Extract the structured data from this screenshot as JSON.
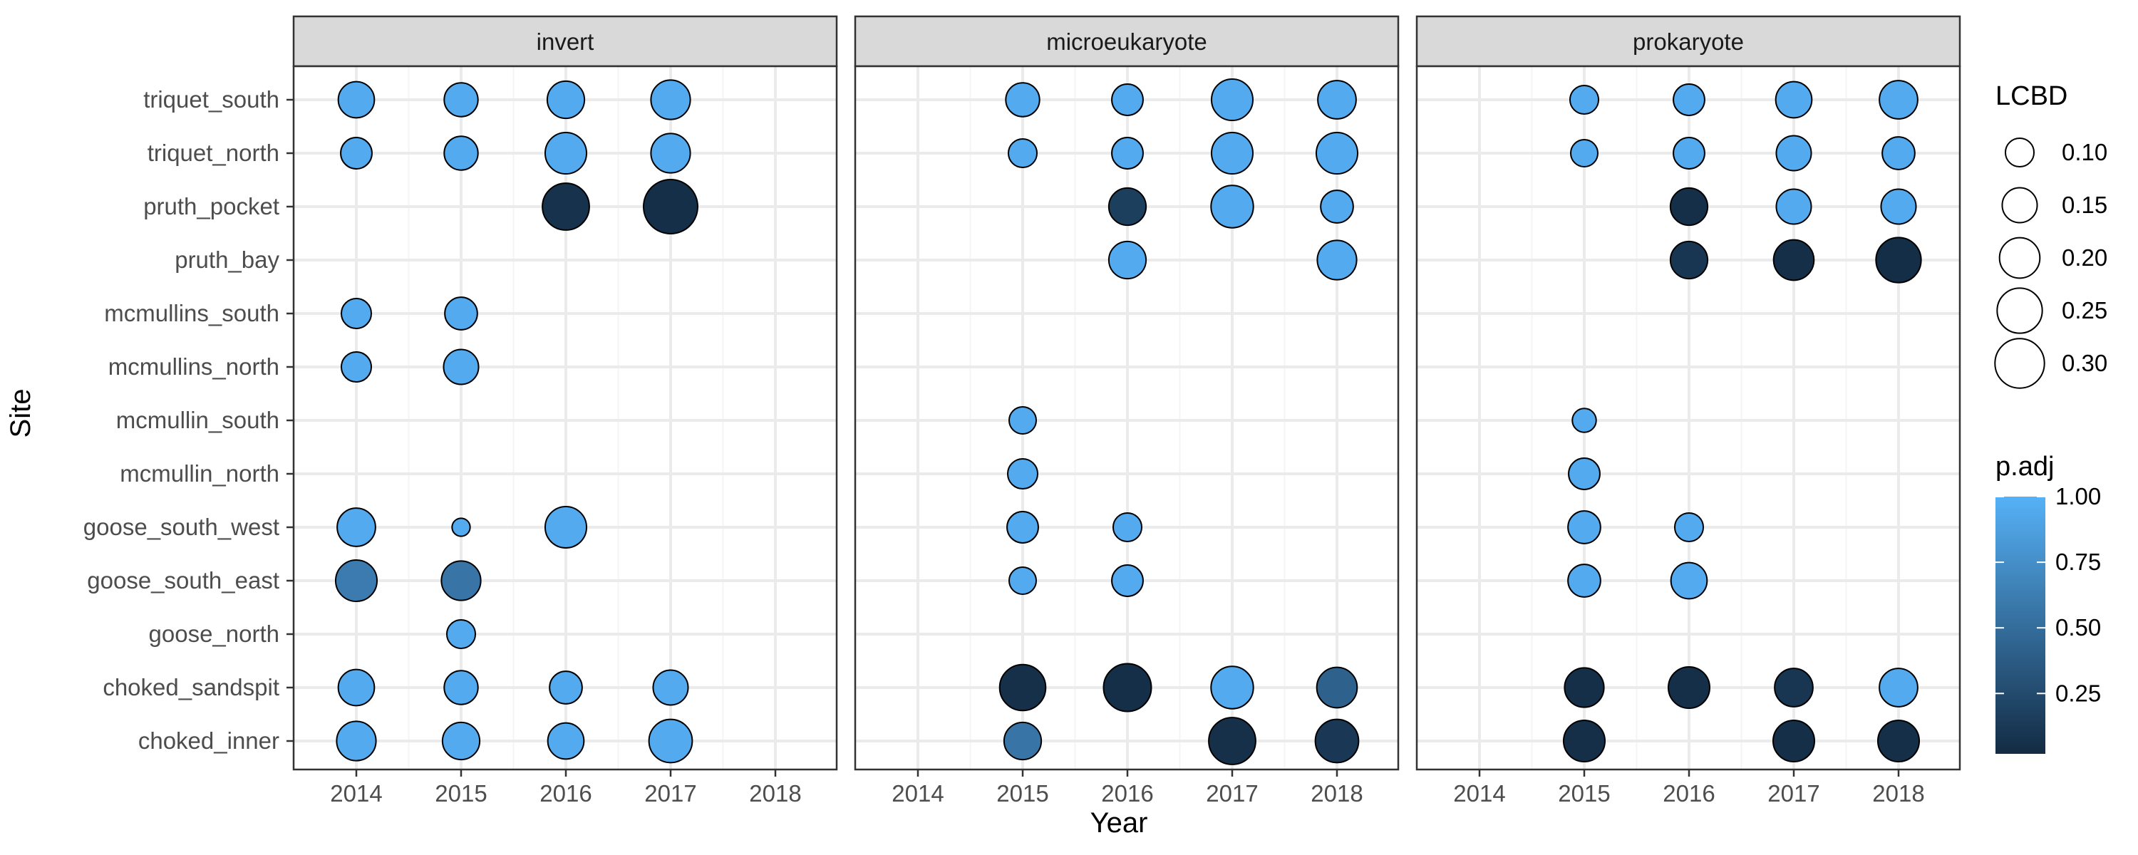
{
  "chart_data": {
    "type": "scatter",
    "xlabel": "Year",
    "ylabel": "Site",
    "x": [
      2014,
      2015,
      2016,
      2017,
      2018
    ],
    "sites": [
      "triquet_south",
      "triquet_north",
      "pruth_pocket",
      "pruth_bay",
      "mcmullins_south",
      "mcmullins_north",
      "mcmullin_south",
      "mcmullin_north",
      "goose_south_west",
      "goose_south_east",
      "goose_north",
      "choked_sandspit",
      "choked_inner"
    ],
    "facets": [
      {
        "label": "invert",
        "points": [
          {
            "site": "triquet_south",
            "year": 2014,
            "lcbd": 0.16,
            "p_adj": 0.95
          },
          {
            "site": "triquet_south",
            "year": 2015,
            "lcbd": 0.14,
            "p_adj": 0.95
          },
          {
            "site": "triquet_south",
            "year": 2016,
            "lcbd": 0.17,
            "p_adj": 0.95
          },
          {
            "site": "triquet_south",
            "year": 2017,
            "lcbd": 0.19,
            "p_adj": 0.95
          },
          {
            "site": "triquet_north",
            "year": 2014,
            "lcbd": 0.12,
            "p_adj": 0.95
          },
          {
            "site": "triquet_north",
            "year": 2015,
            "lcbd": 0.14,
            "p_adj": 0.95
          },
          {
            "site": "triquet_north",
            "year": 2016,
            "lcbd": 0.21,
            "p_adj": 0.95
          },
          {
            "site": "triquet_north",
            "year": 2017,
            "lcbd": 0.19,
            "p_adj": 0.95
          },
          {
            "site": "pruth_pocket",
            "year": 2016,
            "lcbd": 0.27,
            "p_adj": 0.05
          },
          {
            "site": "pruth_pocket",
            "year": 2017,
            "lcbd": 0.36,
            "p_adj": 0.03
          },
          {
            "site": "mcmullins_south",
            "year": 2014,
            "lcbd": 0.11,
            "p_adj": 0.95
          },
          {
            "site": "mcmullins_south",
            "year": 2015,
            "lcbd": 0.13,
            "p_adj": 0.95
          },
          {
            "site": "mcmullins_north",
            "year": 2014,
            "lcbd": 0.11,
            "p_adj": 0.95
          },
          {
            "site": "mcmullins_north",
            "year": 2015,
            "lcbd": 0.15,
            "p_adj": 0.95
          },
          {
            "site": "goose_south_west",
            "year": 2014,
            "lcbd": 0.18,
            "p_adj": 0.95
          },
          {
            "site": "goose_south_west",
            "year": 2015,
            "lcbd": 0.04,
            "p_adj": 0.95
          },
          {
            "site": "goose_south_west",
            "year": 2016,
            "lcbd": 0.21,
            "p_adj": 0.95
          },
          {
            "site": "goose_south_east",
            "year": 2014,
            "lcbd": 0.21,
            "p_adj": 0.6
          },
          {
            "site": "goose_south_east",
            "year": 2015,
            "lcbd": 0.19,
            "p_adj": 0.55
          },
          {
            "site": "goose_north",
            "year": 2015,
            "lcbd": 0.1,
            "p_adj": 0.95
          },
          {
            "site": "choked_sandspit",
            "year": 2014,
            "lcbd": 0.16,
            "p_adj": 0.95
          },
          {
            "site": "choked_sandspit",
            "year": 2015,
            "lcbd": 0.14,
            "p_adj": 0.95
          },
          {
            "site": "choked_sandspit",
            "year": 2016,
            "lcbd": 0.13,
            "p_adj": 0.95
          },
          {
            "site": "choked_sandspit",
            "year": 2017,
            "lcbd": 0.15,
            "p_adj": 0.95
          },
          {
            "site": "choked_inner",
            "year": 2014,
            "lcbd": 0.19,
            "p_adj": 0.95
          },
          {
            "site": "choked_inner",
            "year": 2015,
            "lcbd": 0.17,
            "p_adj": 0.95
          },
          {
            "site": "choked_inner",
            "year": 2016,
            "lcbd": 0.16,
            "p_adj": 0.95
          },
          {
            "site": "choked_inner",
            "year": 2017,
            "lcbd": 0.23,
            "p_adj": 0.95
          }
        ]
      },
      {
        "label": "microeukaryote",
        "points": [
          {
            "site": "triquet_south",
            "year": 2015,
            "lcbd": 0.14,
            "p_adj": 0.95
          },
          {
            "site": "triquet_south",
            "year": 2016,
            "lcbd": 0.12,
            "p_adj": 0.95
          },
          {
            "site": "triquet_south",
            "year": 2017,
            "lcbd": 0.21,
            "p_adj": 0.95
          },
          {
            "site": "triquet_south",
            "year": 2018,
            "lcbd": 0.18,
            "p_adj": 0.95
          },
          {
            "site": "triquet_north",
            "year": 2015,
            "lcbd": 0.1,
            "p_adj": 0.95
          },
          {
            "site": "triquet_north",
            "year": 2016,
            "lcbd": 0.12,
            "p_adj": 0.95
          },
          {
            "site": "triquet_north",
            "year": 2017,
            "lcbd": 0.21,
            "p_adj": 0.95
          },
          {
            "site": "triquet_north",
            "year": 2018,
            "lcbd": 0.21,
            "p_adj": 0.95
          },
          {
            "site": "pruth_pocket",
            "year": 2016,
            "lcbd": 0.17,
            "p_adj": 0.15
          },
          {
            "site": "pruth_pocket",
            "year": 2017,
            "lcbd": 0.22,
            "p_adj": 0.95
          },
          {
            "site": "pruth_pocket",
            "year": 2018,
            "lcbd": 0.13,
            "p_adj": 0.95
          },
          {
            "site": "pruth_bay",
            "year": 2016,
            "lcbd": 0.17,
            "p_adj": 0.95
          },
          {
            "site": "pruth_bay",
            "year": 2018,
            "lcbd": 0.19,
            "p_adj": 0.95
          },
          {
            "site": "mcmullin_south",
            "year": 2015,
            "lcbd": 0.09,
            "p_adj": 0.95
          },
          {
            "site": "mcmullin_north",
            "year": 2015,
            "lcbd": 0.11,
            "p_adj": 0.95
          },
          {
            "site": "goose_south_west",
            "year": 2015,
            "lcbd": 0.12,
            "p_adj": 0.95
          },
          {
            "site": "goose_south_west",
            "year": 2016,
            "lcbd": 0.1,
            "p_adj": 0.95
          },
          {
            "site": "goose_south_east",
            "year": 2015,
            "lcbd": 0.09,
            "p_adj": 0.95
          },
          {
            "site": "goose_south_east",
            "year": 2016,
            "lcbd": 0.12,
            "p_adj": 0.95
          },
          {
            "site": "choked_sandspit",
            "year": 2015,
            "lcbd": 0.26,
            "p_adj": 0.04
          },
          {
            "site": "choked_sandspit",
            "year": 2016,
            "lcbd": 0.28,
            "p_adj": 0.03
          },
          {
            "site": "choked_sandspit",
            "year": 2017,
            "lcbd": 0.22,
            "p_adj": 0.95
          },
          {
            "site": "choked_sandspit",
            "year": 2018,
            "lcbd": 0.2,
            "p_adj": 0.4
          },
          {
            "site": "choked_inner",
            "year": 2015,
            "lcbd": 0.17,
            "p_adj": 0.55
          },
          {
            "site": "choked_inner",
            "year": 2017,
            "lcbd": 0.27,
            "p_adj": 0.04
          },
          {
            "site": "choked_inner",
            "year": 2018,
            "lcbd": 0.23,
            "p_adj": 0.1
          }
        ]
      },
      {
        "label": "prokaryote",
        "points": [
          {
            "site": "triquet_south",
            "year": 2015,
            "lcbd": 0.1,
            "p_adj": 0.95
          },
          {
            "site": "triquet_south",
            "year": 2016,
            "lcbd": 0.12,
            "p_adj": 0.95
          },
          {
            "site": "triquet_south",
            "year": 2017,
            "lcbd": 0.16,
            "p_adj": 0.95
          },
          {
            "site": "triquet_south",
            "year": 2018,
            "lcbd": 0.18,
            "p_adj": 0.95
          },
          {
            "site": "triquet_north",
            "year": 2015,
            "lcbd": 0.09,
            "p_adj": 0.95
          },
          {
            "site": "triquet_north",
            "year": 2016,
            "lcbd": 0.12,
            "p_adj": 0.95
          },
          {
            "site": "triquet_north",
            "year": 2017,
            "lcbd": 0.15,
            "p_adj": 0.95
          },
          {
            "site": "triquet_north",
            "year": 2018,
            "lcbd": 0.13,
            "p_adj": 0.95
          },
          {
            "site": "pruth_pocket",
            "year": 2016,
            "lcbd": 0.17,
            "p_adj": 0.03
          },
          {
            "site": "pruth_pocket",
            "year": 2017,
            "lcbd": 0.15,
            "p_adj": 0.95
          },
          {
            "site": "pruth_pocket",
            "year": 2018,
            "lcbd": 0.15,
            "p_adj": 0.95
          },
          {
            "site": "pruth_bay",
            "year": 2016,
            "lcbd": 0.17,
            "p_adj": 0.08
          },
          {
            "site": "pruth_bay",
            "year": 2017,
            "lcbd": 0.2,
            "p_adj": 0.03
          },
          {
            "site": "pruth_bay",
            "year": 2018,
            "lcbd": 0.25,
            "p_adj": 0.02
          },
          {
            "site": "mcmullin_south",
            "year": 2015,
            "lcbd": 0.07,
            "p_adj": 0.95
          },
          {
            "site": "mcmullin_north",
            "year": 2015,
            "lcbd": 0.12,
            "p_adj": 0.95
          },
          {
            "site": "goose_south_west",
            "year": 2015,
            "lcbd": 0.13,
            "p_adj": 0.95
          },
          {
            "site": "goose_south_west",
            "year": 2016,
            "lcbd": 0.1,
            "p_adj": 0.95
          },
          {
            "site": "goose_south_east",
            "year": 2015,
            "lcbd": 0.13,
            "p_adj": 0.95
          },
          {
            "site": "goose_south_east",
            "year": 2016,
            "lcbd": 0.16,
            "p_adj": 0.95
          },
          {
            "site": "choked_sandspit",
            "year": 2015,
            "lcbd": 0.19,
            "p_adj": 0.03
          },
          {
            "site": "choked_sandspit",
            "year": 2016,
            "lcbd": 0.21,
            "p_adj": 0.03
          },
          {
            "site": "choked_sandspit",
            "year": 2017,
            "lcbd": 0.18,
            "p_adj": 0.08
          },
          {
            "site": "choked_sandspit",
            "year": 2018,
            "lcbd": 0.18,
            "p_adj": 0.95
          },
          {
            "site": "choked_inner",
            "year": 2015,
            "lcbd": 0.21,
            "p_adj": 0.03
          },
          {
            "site": "choked_inner",
            "year": 2017,
            "lcbd": 0.21,
            "p_adj": 0.03
          },
          {
            "site": "choked_inner",
            "year": 2018,
            "lcbd": 0.21,
            "p_adj": 0.03
          }
        ]
      }
    ],
    "legend": {
      "position": "right",
      "size_title": "LCBD",
      "size_breaks": [
        0.1,
        0.15,
        0.2,
        0.25,
        0.3
      ],
      "size_labels": [
        "0.10",
        "0.15",
        "0.20",
        "0.25",
        "0.30"
      ],
      "color_title": "p.adj",
      "color_breaks": [
        0.25,
        0.5,
        0.75,
        1.0
      ],
      "color_labels": [
        "0.25",
        "0.50",
        "0.75",
        "1.00"
      ],
      "color_low": "#132B43",
      "color_high": "#56B1F7"
    },
    "grid": true
  }
}
